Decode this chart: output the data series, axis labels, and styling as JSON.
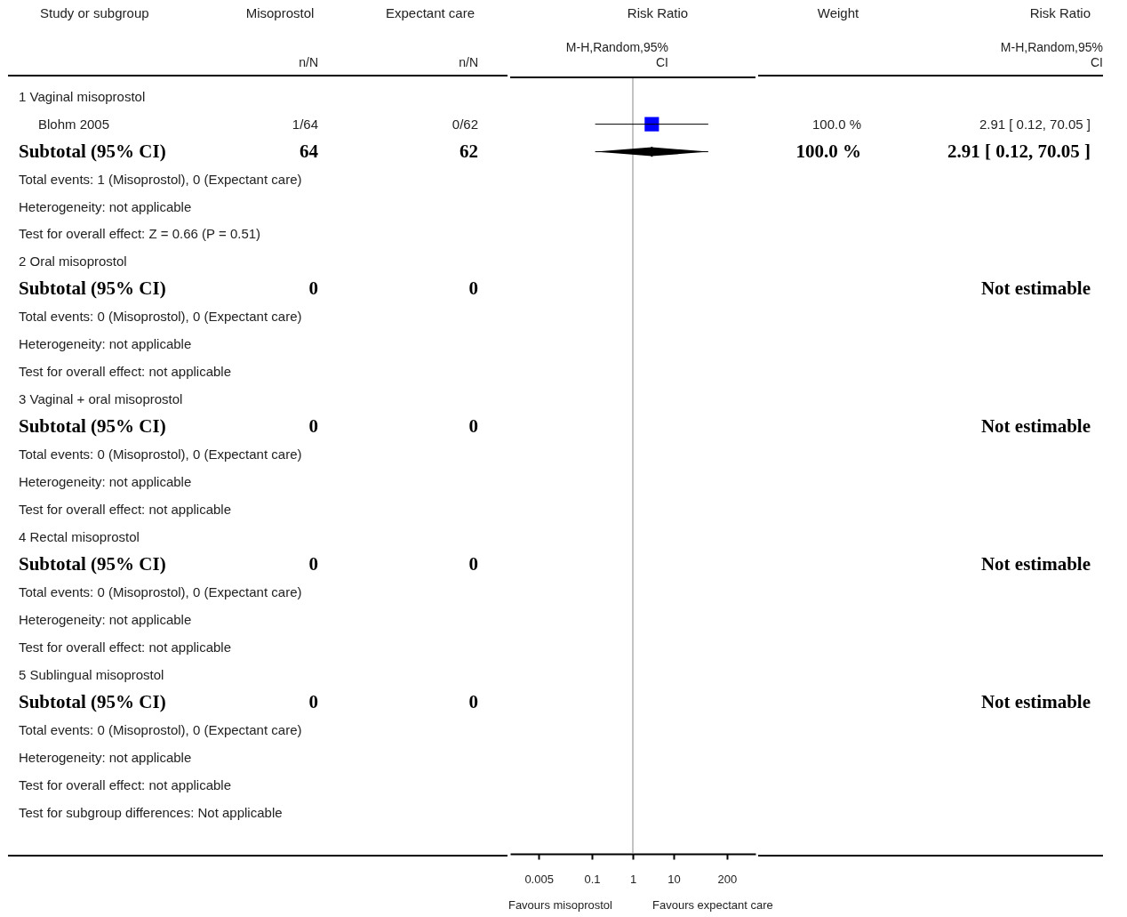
{
  "chart_data": [
    {
      "type": "other",
      "title": "Study or subgroup",
      "annotations": [
        "1 Vaginal misoprostol",
        "Blohm 2005",
        "Subtotal (95% CI)",
        "Total events: 1 (Misoprostol), 0 (Expectant care)",
        "Heterogeneity: not applicable",
        "Test for overall effect: Z = 0.66 (P = 0.51)",
        "2 Oral misoprostol",
        "Subtotal (95% CI)",
        "Total events: 0 (Misoprostol), 0 (Expectant care)",
        "Heterogeneity: not applicable",
        "Test for overall effect: not applicable",
        "3 Vaginal + oral misoprostol",
        "Subtotal (95% CI)",
        "Total events: 0 (Misoprostol), 0 (Expectant care)",
        "Heterogeneity: not applicable",
        "Test for overall effect: not applicable",
        "4 Rectal misoprostol",
        "Subtotal (95% CI)",
        "Total events: 0 (Misoprostol), 0 (Expectant care)",
        "Heterogeneity: not applicable",
        "Test for overall effect: not applicable",
        "5 Sublingual misoprostol",
        "Subtotal (95% CI)",
        "Total events: 0 (Misoprostol), 0 (Expectant care)",
        "Heterogeneity: not applicable",
        "Test for overall effect: not applicable",
        "Test for subgroup differences: Not applicable"
      ]
    },
    {
      "type": "other",
      "title": "Misoprostol",
      "subtitle": "n/N",
      "annotations": [
        null,
        "1/64",
        "64",
        null,
        null,
        null,
        null,
        "0",
        null,
        null,
        null,
        null,
        "0",
        null,
        null,
        null,
        null,
        "0",
        null,
        null,
        null,
        null,
        "0",
        null,
        null,
        null,
        null
      ]
    },
    {
      "type": "other",
      "title": "Expectant care",
      "subtitle": "n/N",
      "annotations": [
        null,
        "0/62",
        "62",
        null,
        null,
        null,
        null,
        "0",
        null,
        null,
        null,
        null,
        "0",
        null,
        null,
        null,
        null,
        "0",
        null,
        null,
        null,
        null,
        "0",
        null,
        null,
        null,
        null
      ]
    },
    {
      "type": "scatter",
      "title": "Risk Ratio",
      "subtitle": "M-H,Random,95% CI",
      "orientation": "horizontal",
      "log": "x",
      "xlim": [
        0.001,
        1000
      ],
      "xticks": [
        0.005,
        0.1,
        1,
        10,
        200
      ],
      "categories": [
        null,
        null,
        null,
        null,
        null,
        null,
        null,
        null,
        null,
        null,
        null,
        null,
        null,
        null,
        null,
        null,
        null,
        null,
        null,
        null,
        null,
        null,
        null,
        null,
        null,
        null,
        null
      ],
      "ref_lines": [
        {
          "axis": "x",
          "value": 1
        }
      ],
      "annotations": [
        "Favours misoprostol",
        "Favours expectant care"
      ],
      "series": [
        {
          "color": "#0000ff",
          "marker": "square",
          "values": [
            null,
            2.91,
            null,
            null,
            null,
            null,
            null,
            null,
            null,
            null,
            null,
            null,
            null,
            null,
            null,
            null,
            null,
            null,
            null,
            null,
            null,
            null,
            null,
            null,
            null,
            null,
            null
          ],
          "errors": [
            null,
            [
              0.12,
              70.05
            ],
            null,
            null,
            null,
            null,
            null,
            null,
            null,
            null,
            null,
            null,
            null,
            null,
            null,
            null,
            null,
            null,
            null,
            null,
            null,
            null,
            null,
            null,
            null,
            null,
            null
          ]
        },
        {
          "color": "#000000",
          "marker": "diamond",
          "values": [
            null,
            null,
            2.91,
            null,
            null,
            null,
            null,
            null,
            null,
            null,
            null,
            null,
            null,
            null,
            null,
            null,
            null,
            null,
            null,
            null,
            null,
            null,
            null,
            null,
            null,
            null,
            null
          ],
          "errors": [
            null,
            null,
            [
              0.12,
              70.05
            ],
            null,
            null,
            null,
            null,
            null,
            null,
            null,
            null,
            null,
            null,
            null,
            null,
            null,
            null,
            null,
            null,
            null,
            null,
            null,
            null,
            null,
            null,
            null,
            null
          ]
        }
      ]
    },
    {
      "type": "other",
      "title": "Weight",
      "annotations": [
        null,
        "100.0 %",
        "100.0 %",
        null,
        null,
        null,
        null,
        null,
        null,
        null,
        null,
        null,
        null,
        null,
        null,
        null,
        null,
        null,
        null,
        null,
        null,
        null,
        null,
        null,
        null,
        null,
        null
      ]
    },
    {
      "type": "other",
      "title": "Risk Ratio",
      "subtitle": "M-H,Random,95% CI",
      "annotations": [
        null,
        "2.91 [ 0.12, 70.05 ]",
        "2.91 [ 0.12, 70.05 ]",
        null,
        null,
        null,
        null,
        "Not estimable",
        null,
        null,
        null,
        null,
        "Not estimable",
        null,
        null,
        null,
        null,
        "Not estimable",
        null,
        null,
        null,
        null,
        "Not estimable",
        null,
        null,
        null,
        null
      ]
    }
  ]
}
